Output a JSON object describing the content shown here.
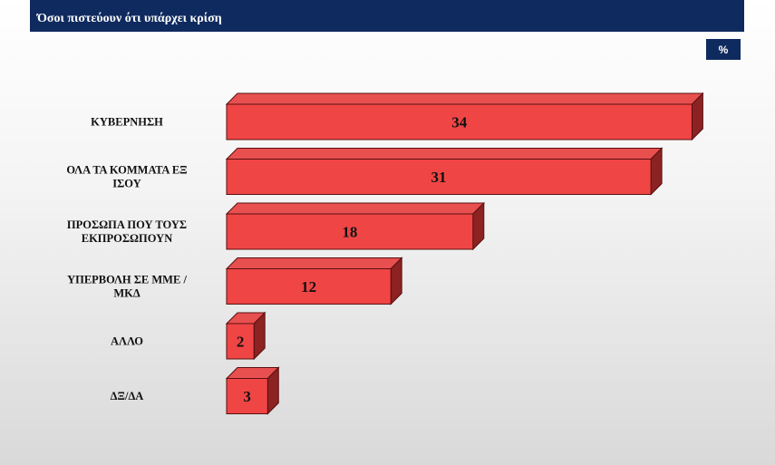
{
  "header": {
    "title_line1": "",
    "title_line2": "Όσοι πιστεύουν ότι υπάρχει κρίση"
  },
  "unit_label": "%",
  "colors": {
    "header_bg": "#0f2a5e",
    "bar_front": "#f04545",
    "bar_top": "#e85050",
    "bar_side": "#8c2222",
    "bar_stroke": "#5a1010"
  },
  "chart_data": {
    "type": "bar",
    "orientation": "horizontal",
    "categories": [
      [
        "ΚΥΒΕΡΝΗΣΗ"
      ],
      [
        "ΟΛΑ ΤΑ ΚΟΜΜΑΤΑ ΕΞ",
        "ΙΣΟΥ"
      ],
      [
        "ΠΡΟΣΩΠΑ ΠΟΥ ΤΟΥΣ",
        "ΕΚΠΡΟΣΩΠΟΥΝ"
      ],
      [
        "ΥΠΕΡΒΟΛΗ ΣΕ ΜΜΕ /",
        "ΜΚΔ"
      ],
      [
        "ΑΛΛΟ"
      ],
      [
        "ΔΞ/ΔΑ"
      ]
    ],
    "values": [
      34,
      31,
      18,
      12,
      2,
      3
    ],
    "unit": "%",
    "grid": false,
    "legend": "none",
    "style": "3d"
  }
}
